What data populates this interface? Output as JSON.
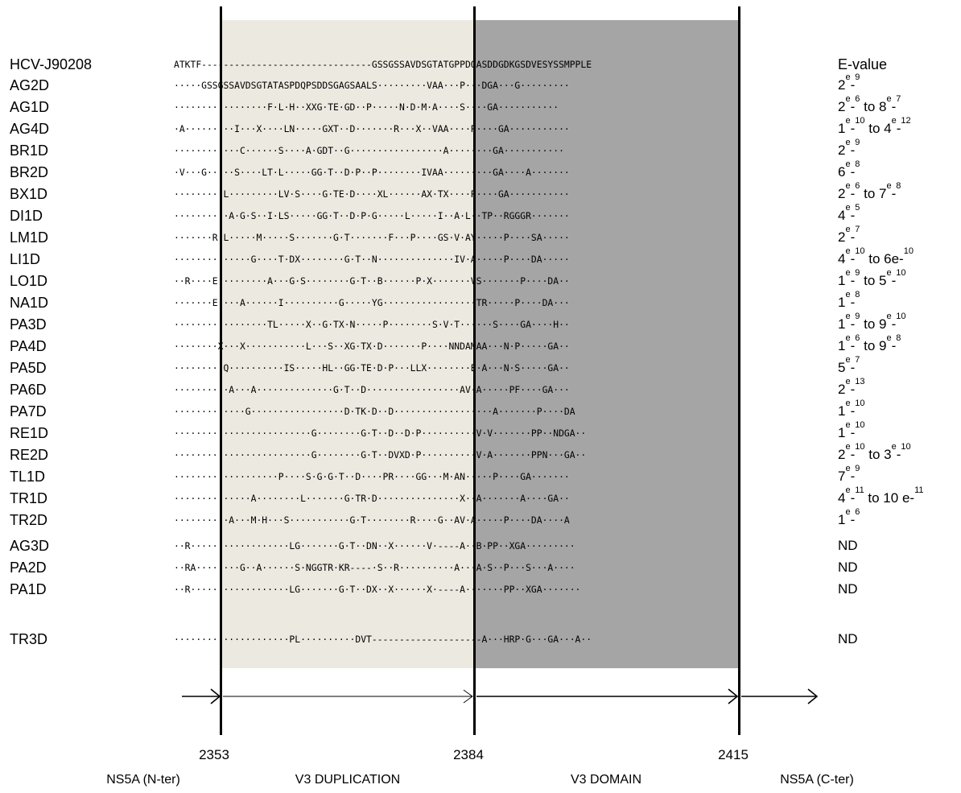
{
  "header": {
    "evalue_label": "E-value"
  },
  "reference": {
    "name": "HCV-J90208",
    "seq": "ATKTF-------------------------------GSSGSSAVDSGTATGPPDQASDDGDKGSDVESYSSMPPLE"
  },
  "rows": [
    {
      "name": "AG2D",
      "seq": "·····GSSGSSAVDSGTATASPDQPSDDSGAGSAALS·········VAA···P···DGA···G·········",
      "ev_parts": [
        {
          "t": "2"
        },
        {
          "t": "e",
          "sup": true
        },
        {
          "t": "-"
        },
        {
          "t": "9",
          "sup": true
        }
      ]
    },
    {
      "name": "AG1D",
      "seq": "·················F·L·H··XXG·TE·GD··P·····N·D·M·A····S····GA···········",
      "ev_parts": [
        {
          "t": "2"
        },
        {
          "t": "e",
          "sup": true
        },
        {
          "t": "-"
        },
        {
          "t": "6",
          "sup": true
        },
        {
          "t": " to 8"
        },
        {
          "t": "e",
          "sup": true
        },
        {
          "t": "-"
        },
        {
          "t": "7",
          "sup": true
        }
      ]
    },
    {
      "name": "AG4D",
      "seq": "·A·········I···X····LN·····GXT··D·······R···X··VAA····P····GA···········",
      "ev_parts": [
        {
          "t": "1"
        },
        {
          "t": "e",
          "sup": true
        },
        {
          "t": "-"
        },
        {
          "t": "10",
          "sup": true
        },
        {
          "t": " to 4"
        },
        {
          "t": "e",
          "sup": true
        },
        {
          "t": "-"
        },
        {
          "t": "12",
          "sup": true
        }
      ]
    },
    {
      "name": "BR1D",
      "seq": "············C······S····A·GDT··G·················A········GA···········",
      "ev_parts": [
        {
          "t": "2"
        },
        {
          "t": "e",
          "sup": true
        },
        {
          "t": "-"
        },
        {
          "t": "9",
          "sup": true
        }
      ]
    },
    {
      "name": "BR2D",
      "seq": "·V···G·····S····LT·L·····GG·T··D·P··P········IVAA·········GA····A·······",
      "ev_parts": [
        {
          "t": "6"
        },
        {
          "t": "e",
          "sup": true
        },
        {
          "t": "-"
        },
        {
          "t": "8",
          "sup": true
        }
      ]
    },
    {
      "name": "BX1D",
      "seq": "·········L·········LV·S····G·TE·D····XL······AX·TX····P····GA···········",
      "ev_parts": [
        {
          "t": "2"
        },
        {
          "t": "e",
          "sup": true
        },
        {
          "t": "-"
        },
        {
          "t": "6",
          "sup": true
        },
        {
          "t": " to 7"
        },
        {
          "t": "e",
          "sup": true
        },
        {
          "t": "-"
        },
        {
          "t": "8",
          "sup": true
        }
      ]
    },
    {
      "name": "DI1D",
      "seq": "··········A·G·S··I·LS·····GG·T··D·P·G·····L·····I··A·L··TP··RGGGR·······",
      "ev_parts": [
        {
          "t": "4"
        },
        {
          "t": "e",
          "sup": true
        },
        {
          "t": "-"
        },
        {
          "t": "5",
          "sup": true
        }
      ]
    },
    {
      "name": "LM1D",
      "seq": "·······R·L·····M·····S·······G·T·······F···P····GS·V·AY·····P····SA·····",
      "ev_parts": [
        {
          "t": "2"
        },
        {
          "t": "e",
          "sup": true
        },
        {
          "t": "-"
        },
        {
          "t": "7",
          "sup": true
        }
      ]
    },
    {
      "name": "LI1D",
      "seq": "··············G····T·DX········G·T··N··············IV·A·····P····DA·····",
      "ev_parts": [
        {
          "t": "4"
        },
        {
          "t": "e",
          "sup": true
        },
        {
          "t": "-"
        },
        {
          "t": "10",
          "sup": true
        },
        {
          "t": " to 6e-"
        },
        {
          "t": "10",
          "sup": true
        }
      ]
    },
    {
      "name": "LO1D",
      "seq": "··R····E·········A···G·S········G·T··B······P·X·······VS·······P····DA··",
      "ev_parts": [
        {
          "t": "1"
        },
        {
          "t": "e",
          "sup": true
        },
        {
          "t": "-"
        },
        {
          "t": "9",
          "sup": true
        },
        {
          "t": " to 5"
        },
        {
          "t": "e",
          "sup": true
        },
        {
          "t": "-"
        },
        {
          "t": "10",
          "sup": true
        }
      ]
    },
    {
      "name": "NA1D",
      "seq": "·······E····A······I··········G·····YG·················TR·····P····DA···",
      "ev_parts": [
        {
          "t": "1"
        },
        {
          "t": "e",
          "sup": true
        },
        {
          "t": "-"
        },
        {
          "t": "8",
          "sup": true
        }
      ]
    },
    {
      "name": "PA3D",
      "seq": "·················TL·····X··G·TX·N·····P········S·V·T······S····GA····H··",
      "ev_parts": [
        {
          "t": "1"
        },
        {
          "t": "e",
          "sup": true
        },
        {
          "t": "-"
        },
        {
          "t": "9",
          "sup": true
        },
        {
          "t": " to 9"
        },
        {
          "t": "e",
          "sup": true
        },
        {
          "t": "-"
        },
        {
          "t": "10",
          "sup": true
        }
      ]
    },
    {
      "name": "PA4D",
      "seq": "········X···X···········L···S··XG·TX·D·······P····NNDAMAA···N·P·····GA··",
      "ev_parts": [
        {
          "t": "1"
        },
        {
          "t": "e",
          "sup": true
        },
        {
          "t": "-"
        },
        {
          "t": "6",
          "sup": true
        },
        {
          "t": " to 9"
        },
        {
          "t": "e",
          "sup": true
        },
        {
          "t": "-"
        },
        {
          "t": "8",
          "sup": true
        }
      ]
    },
    {
      "name": "PA5D",
      "seq": "·········Q··········IS·····HL··GG·TE·D·P···LLX········E·A···N·S·····GA··",
      "ev_parts": [
        {
          "t": "5"
        },
        {
          "t": "e",
          "sup": true
        },
        {
          "t": "-"
        },
        {
          "t": "7",
          "sup": true
        }
      ]
    },
    {
      "name": "PA6D",
      "seq": "··········A···A··············G·T··D·················AV·A·····PF····GA···",
      "ev_parts": [
        {
          "t": "2"
        },
        {
          "t": "e",
          "sup": true
        },
        {
          "t": "-"
        },
        {
          "t": "13",
          "sup": true
        }
      ]
    },
    {
      "name": "PA7D",
      "seq": "·············G·················D·TK·D··D··················A·······P····DA",
      "ev_parts": [
        {
          "t": "1"
        },
        {
          "t": "e",
          "sup": true
        },
        {
          "t": "-"
        },
        {
          "t": "10",
          "sup": true
        }
      ]
    },
    {
      "name": "RE1D",
      "seq": "·························G········G·T··D··D·P··········V·V·······PP··NDGA··",
      "ev_parts": [
        {
          "t": "1"
        },
        {
          "t": "e",
          "sup": true
        },
        {
          "t": "-"
        },
        {
          "t": "10",
          "sup": true
        }
      ]
    },
    {
      "name": "RE2D",
      "seq": "·························G········G·T··DVXD·P··········V·A·······PPN···GA··",
      "ev_parts": [
        {
          "t": "2"
        },
        {
          "t": "e",
          "sup": true
        },
        {
          "t": "-"
        },
        {
          "t": "10",
          "sup": true
        },
        {
          "t": " to 3"
        },
        {
          "t": "e",
          "sup": true
        },
        {
          "t": "-"
        },
        {
          "t": "10",
          "sup": true
        }
      ]
    },
    {
      "name": "TL1D",
      "seq": "···················P····S·G·G·T··D····PR····GG···M·AN·····P····GA·······",
      "ev_parts": [
        {
          "t": "7"
        },
        {
          "t": "e",
          "sup": true
        },
        {
          "t": "-"
        },
        {
          "t": "9",
          "sup": true
        }
      ]
    },
    {
      "name": "TR1D",
      "seq": "··············A········L·······G·TR·D···············X··A·······A····GA··",
      "ev_parts": [
        {
          "t": "4"
        },
        {
          "t": "e",
          "sup": true
        },
        {
          "t": "-"
        },
        {
          "t": "11",
          "sup": true
        },
        {
          "t": " to 10 e-"
        },
        {
          "t": "11",
          "sup": true
        }
      ]
    },
    {
      "name": "TR2D",
      "seq": "··········A···M·H···S···········G·T········R····G··AV·A·····P····DA····A",
      "ev_parts": [
        {
          "t": "1"
        },
        {
          "t": "e",
          "sup": true
        },
        {
          "t": "-"
        },
        {
          "t": "6",
          "sup": true
        }
      ]
    },
    {
      "name": "AG3D",
      "seq": "··R··················LG·······G·T··DN··X······V·----A··B·PP··XGA·········",
      "ev_parts": [
        {
          "t": "ND"
        }
      ]
    },
    {
      "name": "PA2D",
      "seq": "··RA········G··A······S·NGGTR·KR----·S··R··········A···A·S··P···S···A····",
      "ev_parts": [
        {
          "t": "ND"
        }
      ]
    },
    {
      "name": "PA1D",
      "seq": "··R··················LG·······G·T··DX··X······X·----A·······PP··XGA·······",
      "ev_parts": [
        {
          "t": "ND"
        }
      ]
    },
    {
      "name": "TR3D",
      "seq": "·····················PL··········DVT--------------------A···HRP·G···GA···A··",
      "ev_parts": [
        {
          "t": "ND"
        }
      ]
    }
  ],
  "positions": [
    "2353",
    "2384",
    "2415"
  ],
  "regions": [
    "NS5A (N-ter)",
    "V3 DUPLICATION",
    "V3 DOMAIN",
    "NS5A (C-ter)"
  ]
}
